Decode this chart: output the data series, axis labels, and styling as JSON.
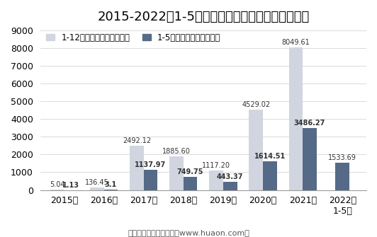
{
  "title": "2015-2022年1-5月郑州商品交易所锰硅期货成交量",
  "categories": [
    "2015年",
    "2016年",
    "2017年",
    "2018年",
    "2019年",
    "2020年",
    "2021年",
    "2022年\n1-5月"
  ],
  "annual_values": [
    5.04,
    136.45,
    2492.12,
    1885.6,
    1117.2,
    4529.02,
    8049.61,
    null
  ],
  "jan_may_values": [
    1.13,
    3.1,
    1137.97,
    749.75,
    443.37,
    1614.51,
    3486.27,
    1533.69
  ],
  "annual_color": "#d0d5df",
  "jan_may_color": "#546a87",
  "ylim": [
    0,
    9000
  ],
  "yticks": [
    0,
    1000,
    2000,
    3000,
    4000,
    5000,
    6000,
    7000,
    8000,
    9000
  ],
  "legend_annual": "1-12月期货成交量（万手）",
  "legend_jan_may": "1-5月期货成交量（万手）",
  "footer": "制图：华经产业研究院（www.huaon.com）",
  "bar_width": 0.35,
  "title_fontsize": 13,
  "label_fontsize": 7,
  "tick_fontsize": 9,
  "legend_fontsize": 8.5,
  "footer_fontsize": 8
}
